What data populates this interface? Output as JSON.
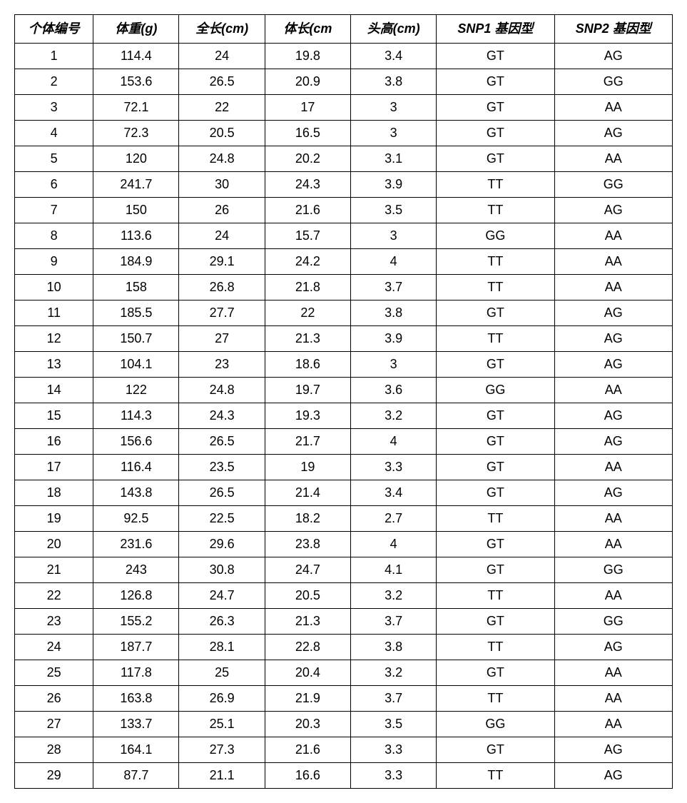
{
  "table": {
    "columns": [
      "个体编号",
      "体重(g)",
      "全长(cm)",
      "体长(cm",
      "头高(cm)",
      "SNP1 基因型",
      "SNP2 基因型"
    ],
    "rows": [
      [
        "1",
        "114.4",
        "24",
        "19.8",
        "3.4",
        "GT",
        "AG"
      ],
      [
        "2",
        "153.6",
        "26.5",
        "20.9",
        "3.8",
        "GT",
        "GG"
      ],
      [
        "3",
        "72.1",
        "22",
        "17",
        "3",
        "GT",
        "AA"
      ],
      [
        "4",
        "72.3",
        "20.5",
        "16.5",
        "3",
        "GT",
        "AG"
      ],
      [
        "5",
        "120",
        "24.8",
        "20.2",
        "3.1",
        "GT",
        "AA"
      ],
      [
        "6",
        "241.7",
        "30",
        "24.3",
        "3.9",
        "TT",
        "GG"
      ],
      [
        "7",
        "150",
        "26",
        "21.6",
        "3.5",
        "TT",
        "AG"
      ],
      [
        "8",
        "113.6",
        "24",
        "15.7",
        "3",
        "GG",
        "AA"
      ],
      [
        "9",
        "184.9",
        "29.1",
        "24.2",
        "4",
        "TT",
        "AA"
      ],
      [
        "10",
        "158",
        "26.8",
        "21.8",
        "3.7",
        "TT",
        "AA"
      ],
      [
        "11",
        "185.5",
        "27.7",
        "22",
        "3.8",
        "GT",
        "AG"
      ],
      [
        "12",
        "150.7",
        "27",
        "21.3",
        "3.9",
        "TT",
        "AG"
      ],
      [
        "13",
        "104.1",
        "23",
        "18.6",
        "3",
        "GT",
        "AG"
      ],
      [
        "14",
        "122",
        "24.8",
        "19.7",
        "3.6",
        "GG",
        "AA"
      ],
      [
        "15",
        "114.3",
        "24.3",
        "19.3",
        "3.2",
        "GT",
        "AG"
      ],
      [
        "16",
        "156.6",
        "26.5",
        "21.7",
        "4",
        "GT",
        "AG"
      ],
      [
        "17",
        "116.4",
        "23.5",
        "19",
        "3.3",
        "GT",
        "AA"
      ],
      [
        "18",
        "143.8",
        "26.5",
        "21.4",
        "3.4",
        "GT",
        "AG"
      ],
      [
        "19",
        "92.5",
        "22.5",
        "18.2",
        "2.7",
        "TT",
        "AA"
      ],
      [
        "20",
        "231.6",
        "29.6",
        "23.8",
        "4",
        "GT",
        "AA"
      ],
      [
        "21",
        "243",
        "30.8",
        "24.7",
        "4.1",
        "GT",
        "GG"
      ],
      [
        "22",
        "126.8",
        "24.7",
        "20.5",
        "3.2",
        "TT",
        "AA"
      ],
      [
        "23",
        "155.2",
        "26.3",
        "21.3",
        "3.7",
        "GT",
        "GG"
      ],
      [
        "24",
        "187.7",
        "28.1",
        "22.8",
        "3.8",
        "TT",
        "AG"
      ],
      [
        "25",
        "117.8",
        "25",
        "20.4",
        "3.2",
        "GT",
        "AA"
      ],
      [
        "26",
        "163.8",
        "26.9",
        "21.9",
        "3.7",
        "TT",
        "AA"
      ],
      [
        "27",
        "133.7",
        "25.1",
        "20.3",
        "3.5",
        "GG",
        "AA"
      ],
      [
        "28",
        "164.1",
        "27.3",
        "21.6",
        "3.3",
        "GT",
        "AG"
      ],
      [
        "29",
        "87.7",
        "21.1",
        "16.6",
        "3.3",
        "TT",
        "AG"
      ]
    ]
  }
}
